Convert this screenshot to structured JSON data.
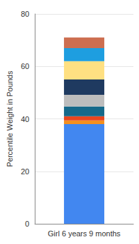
{
  "chart_data": {
    "type": "bar",
    "stacked": true,
    "ylabel": "Percentile Weight in Pounds",
    "categories": [
      "Girl 6 years 9 months"
    ],
    "series": [
      {
        "color": "#4287f0",
        "values": [
          38
        ]
      },
      {
        "color": "#f5901e",
        "values": [
          1.4
        ]
      },
      {
        "color": "#e8461e",
        "values": [
          1.6
        ]
      },
      {
        "color": "#16698a",
        "values": [
          3.7
        ]
      },
      {
        "color": "#bdbdbd",
        "values": [
          4.5
        ]
      },
      {
        "color": "#1f3a60",
        "values": [
          5.8
        ]
      },
      {
        "color": "#ffe082",
        "values": [
          7
        ]
      },
      {
        "color": "#1e9ee0",
        "values": [
          5
        ]
      },
      {
        "color": "#cd6e50",
        "values": [
          4
        ]
      }
    ],
    "ylim": [
      0,
      80
    ],
    "yticks": [
      0,
      20,
      40,
      60,
      80
    ],
    "grid": true
  }
}
